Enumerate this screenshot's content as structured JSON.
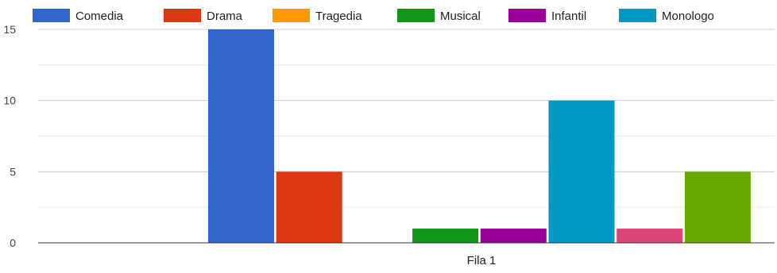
{
  "chart_data": {
    "type": "bar",
    "categories": [
      "Fila 1"
    ],
    "series": [
      {
        "name": "Comedia",
        "color": "#3366cc",
        "values": [
          15
        ]
      },
      {
        "name": "Drama",
        "color": "#dc3912",
        "values": [
          5
        ]
      },
      {
        "name": "Tragedia",
        "color": "#ff9900",
        "values": [
          0
        ]
      },
      {
        "name": "Musical",
        "color": "#109618",
        "values": [
          1
        ]
      },
      {
        "name": "Infantil",
        "color": "#990099",
        "values": [
          1
        ]
      },
      {
        "name": "Monologo",
        "color": "#0099c6",
        "values": [
          10
        ]
      },
      {
        "name": "",
        "color": "#dd4477",
        "values": [
          1
        ]
      },
      {
        "name": "",
        "color": "#66aa00",
        "values": [
          5
        ]
      }
    ],
    "ylim": [
      0,
      15
    ],
    "yticks": [
      0,
      5,
      10,
      15
    ],
    "xlabel": "",
    "ylabel": "",
    "title": "",
    "grid": true,
    "legend_position": "top"
  }
}
